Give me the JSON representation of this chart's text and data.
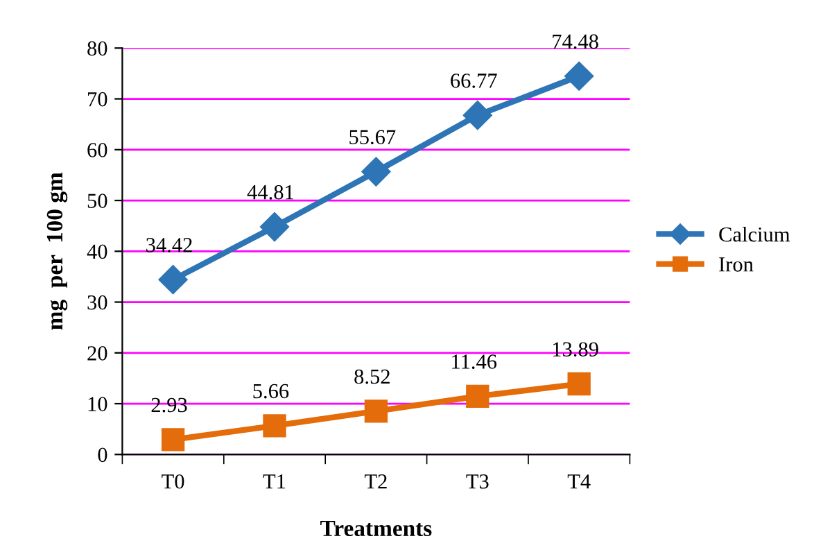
{
  "chart_data": {
    "type": "line",
    "xlabel": "Treatments",
    "ylabel": "mg  per  100 gm",
    "categories": [
      "T0",
      "T1",
      "T2",
      "T3",
      "T4"
    ],
    "series": [
      {
        "name": "Calcium",
        "color": "#2e75b6",
        "values": [
          34.42,
          44.81,
          55.67,
          66.77,
          74.48
        ],
        "marker": "diamond"
      },
      {
        "name": "Iron",
        "color": "#e46c0a",
        "values": [
          2.93,
          5.66,
          8.52,
          11.46,
          13.89
        ],
        "marker": "square"
      }
    ],
    "ylim": [
      0,
      80
    ],
    "yticks": [
      0,
      10,
      20,
      30,
      40,
      50,
      60,
      70,
      80
    ],
    "grid": "y",
    "legend": "right",
    "data_labels": true,
    "line_style": "solid"
  }
}
